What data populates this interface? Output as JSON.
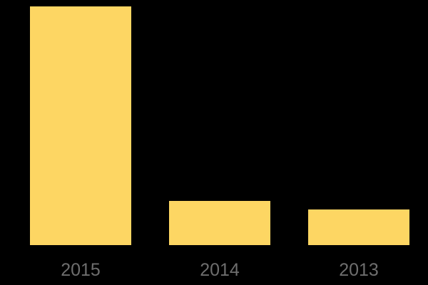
{
  "canvas": {
    "background": "#000000"
  },
  "chart_data": {
    "type": "bar",
    "categories": [
      "2015",
      "2014",
      "2013"
    ],
    "values": [
      100,
      18.5,
      14.9
    ],
    "title": "",
    "xlabel": "",
    "ylabel": "",
    "ylim": [
      0,
      100
    ],
    "grid": false,
    "legend": false,
    "axes_visible": false,
    "bar_color": "#FDD663",
    "label_color": "#6E6E6E"
  }
}
